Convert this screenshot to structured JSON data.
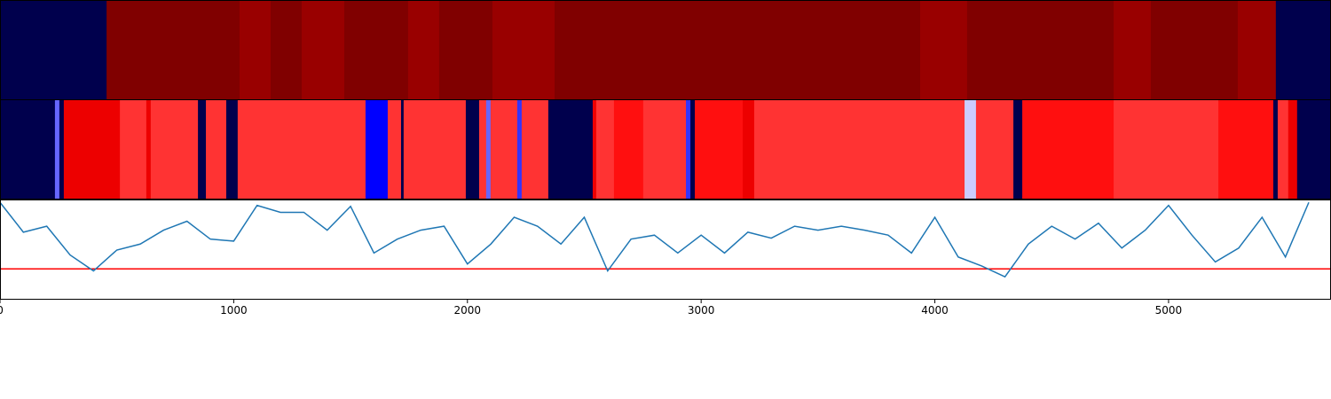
{
  "chart_data": [
    {
      "type": "heatmap",
      "colormap": "seismic",
      "vmin": 0,
      "vmax": 1,
      "xlim": [
        0,
        5695
      ],
      "edges": [
        0,
        456,
        1025,
        1158,
        1291,
        1473,
        1746,
        1879,
        2107,
        2373,
        3937,
        4138,
        4765,
        4924,
        5296,
        5459,
        5695
      ],
      "values": [
        0,
        1,
        0.95,
        1,
        0.95,
        1,
        0.95,
        1,
        0.95,
        1,
        0.95,
        1,
        0.95,
        1,
        0.95,
        0
      ]
    },
    {
      "type": "heatmap",
      "colormap": "seismic",
      "vmin": 0,
      "vmax": 1,
      "xlim": [
        0,
        5695
      ],
      "edges": [
        0,
        235,
        254,
        273,
        513,
        626,
        645,
        847,
        881,
        968,
        1017,
        1564,
        1659,
        1716,
        1727,
        1993,
        2050,
        2080,
        2099,
        2213,
        2232,
        2346,
        2536,
        2551,
        2627,
        2752,
        2935,
        2954,
        2973,
        3178,
        3227,
        4127,
        4176,
        4336,
        4374,
        4765,
        5213,
        5448,
        5467,
        5512,
        5550,
        5695
      ],
      "values": [
        0,
        0.35,
        0,
        0.785,
        0.7,
        0.785,
        0.7,
        0,
        0.7,
        0,
        0.7,
        0.25,
        0.7,
        0,
        0.7,
        0,
        0.7,
        0.35,
        0.7,
        0.3,
        0.7,
        0,
        0.785,
        0.7,
        0.735,
        0.7,
        0.3,
        0,
        0.735,
        0.785,
        0.7,
        0.45,
        0.7,
        0,
        0.735,
        0.7,
        0.735,
        0,
        0.7,
        0.785,
        0
      ]
    },
    {
      "type": "line",
      "color": "#1f77b4",
      "xlim": [
        0,
        5695
      ],
      "ylim": [
        0,
        1
      ],
      "xticks": [
        0,
        1000,
        2000,
        3000,
        4000,
        5000
      ],
      "hline": {
        "value": 0.31,
        "color": "#ff0000"
      },
      "x": [
        0,
        100,
        200,
        300,
        400,
        500,
        600,
        700,
        800,
        900,
        1000,
        1100,
        1200,
        1300,
        1400,
        1500,
        1600,
        1700,
        1800,
        1900,
        2000,
        2100,
        2200,
        2300,
        2400,
        2500,
        2600,
        2700,
        2800,
        2900,
        3000,
        3100,
        3200,
        3300,
        3400,
        3500,
        3600,
        3700,
        3800,
        3900,
        4000,
        4100,
        4200,
        4300,
        4400,
        4500,
        4600,
        4700,
        4800,
        4900,
        5000,
        5100,
        5200,
        5300,
        5400,
        5500,
        5600
      ],
      "values": [
        0.98,
        0.68,
        0.74,
        0.45,
        0.29,
        0.5,
        0.56,
        0.7,
        0.79,
        0.61,
        0.59,
        0.95,
        0.88,
        0.88,
        0.7,
        0.94,
        0.47,
        0.61,
        0.7,
        0.74,
        0.36,
        0.56,
        0.83,
        0.74,
        0.56,
        0.83,
        0.29,
        0.61,
        0.65,
        0.47,
        0.65,
        0.47,
        0.68,
        0.62,
        0.74,
        0.7,
        0.74,
        0.7,
        0.65,
        0.47,
        0.83,
        0.43,
        0.34,
        0.23,
        0.56,
        0.74,
        0.61,
        0.77,
        0.52,
        0.7,
        0.95,
        0.65,
        0.38,
        0.52,
        0.83,
        0.43,
        0.98
      ]
    }
  ]
}
